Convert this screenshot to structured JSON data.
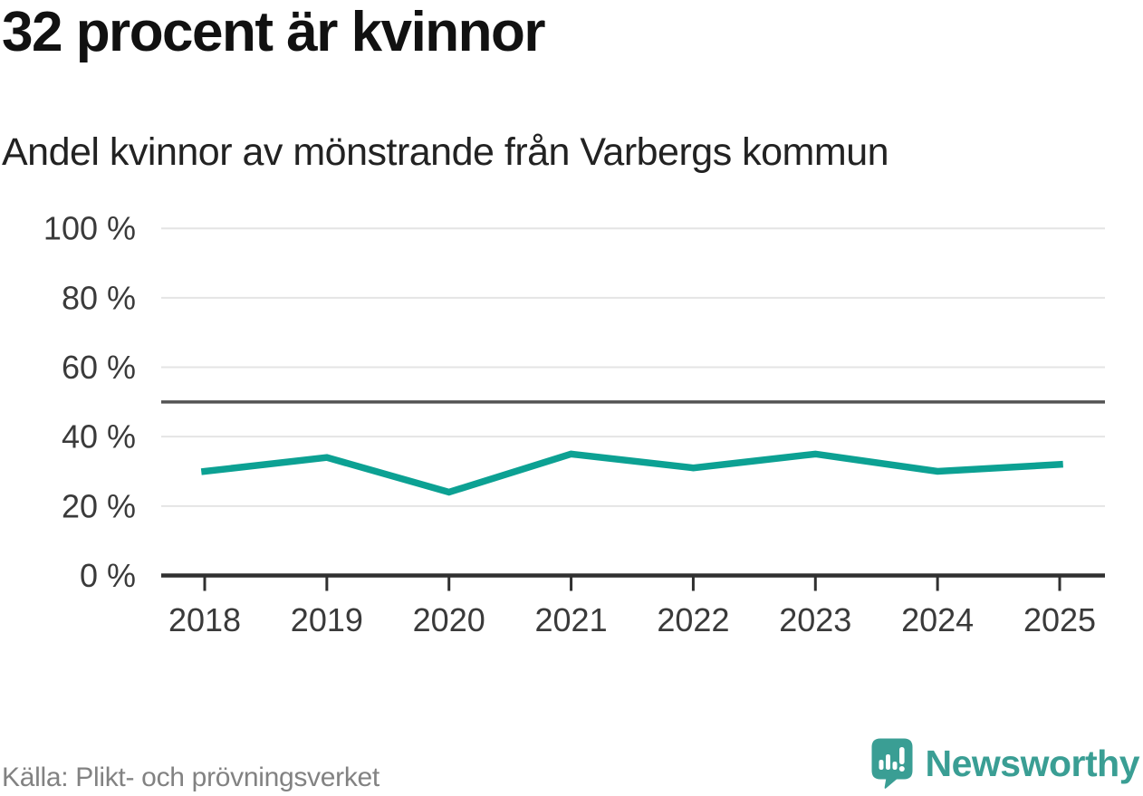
{
  "header": {
    "title": "32 procent är kvinnor",
    "subtitle": "Andel kvinnor av mönstrande från Varbergs kommun"
  },
  "footer": {
    "source": "Källa: Plikt- och prövningsverket",
    "brand": "Newsworthy"
  },
  "colors": {
    "line": "#0ca193",
    "reference_line": "#545454",
    "gridline": "#e4e4e4",
    "axis": "#303030",
    "tick_label": "#3a3a3a",
    "brand": "#3a9e94",
    "muted_text": "#828282"
  },
  "chart_data": {
    "type": "line",
    "title": "32 procent är kvinnor",
    "subtitle": "Andel kvinnor av mönstrande från Varbergs kommun",
    "categories": [
      "2018",
      "2019",
      "2020",
      "2021",
      "2022",
      "2023",
      "2024",
      "2025"
    ],
    "series": [
      {
        "name": "Andel kvinnor av mönstrande",
        "values": [
          30,
          34,
          24,
          35,
          31,
          35,
          30,
          32
        ]
      }
    ],
    "ylim": [
      0,
      100
    ],
    "yticks": [
      0,
      20,
      40,
      60,
      80,
      100
    ],
    "ytick_labels": [
      "0 %",
      "20 %",
      "40 %",
      "60 %",
      "80 %",
      "100 %"
    ],
    "reference_line": 50,
    "grid": true,
    "legend": false,
    "xlabel": "",
    "ylabel": ""
  }
}
